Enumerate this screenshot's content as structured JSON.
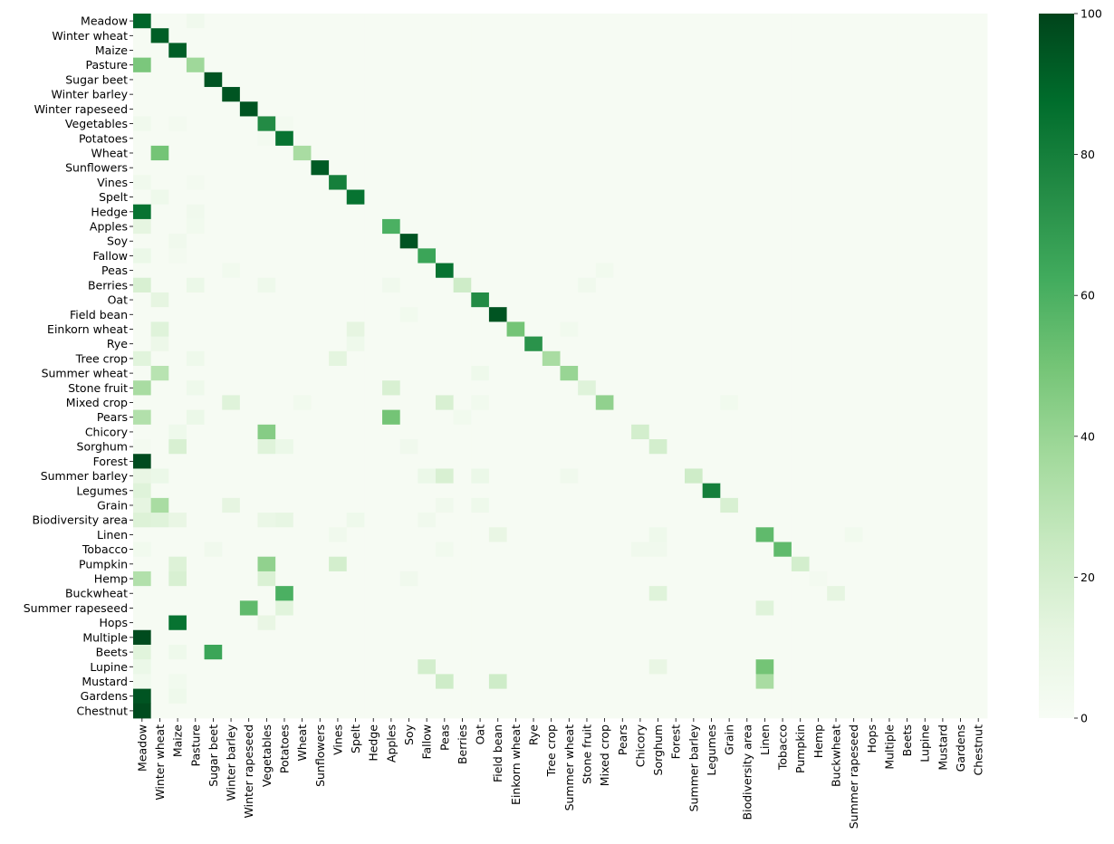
{
  "chart_data": {
    "type": "heatmap",
    "title": "",
    "xlabel": "",
    "ylabel": "",
    "categories": [
      "Meadow",
      "Winter wheat",
      "Maize",
      "Pasture",
      "Sugar beet",
      "Winter barley",
      "Winter rapeseed",
      "Vegetables",
      "Potatoes",
      "Wheat",
      "Sunflowers",
      "Vines",
      "Spelt",
      "Hedge",
      "Apples",
      "Soy",
      "Fallow",
      "Peas",
      "Berries",
      "Oat",
      "Field bean",
      "Einkorn wheat",
      "Rye",
      "Tree crop",
      "Summer wheat",
      "Stone fruit",
      "Mixed crop",
      "Pears",
      "Chicory",
      "Sorghum",
      "Forest",
      "Summer barley",
      "Legumes",
      "Grain",
      "Biodiversity area",
      "Linen",
      "Tobacco",
      "Pumpkin",
      "Hemp",
      "Buckwheat",
      "Summer rapeseed",
      "Hops",
      "Multiple",
      "Beets",
      "Lupine",
      "Mustard",
      "Gardens",
      "Chestnut"
    ],
    "colorbar": {
      "min": 0,
      "max": 100,
      "ticks": [
        0,
        20,
        40,
        60,
        80,
        100
      ]
    },
    "colormap": [
      "#f7fcf5",
      "#e5f5e0",
      "#c7e9c0",
      "#a1d99b",
      "#74c476",
      "#41ab5d",
      "#238b45",
      "#006d2c",
      "#00441b"
    ],
    "background_value": 1,
    "cells": [
      [
        0,
        0,
        90
      ],
      [
        0,
        3,
        5
      ],
      [
        1,
        1,
        92
      ],
      [
        2,
        2,
        92
      ],
      [
        3,
        0,
        48
      ],
      [
        3,
        3,
        38
      ],
      [
        4,
        4,
        95
      ],
      [
        5,
        5,
        95
      ],
      [
        6,
        6,
        95
      ],
      [
        7,
        0,
        5
      ],
      [
        7,
        2,
        3
      ],
      [
        7,
        7,
        75
      ],
      [
        7,
        8,
        3
      ],
      [
        8,
        7,
        3
      ],
      [
        8,
        8,
        85
      ],
      [
        9,
        1,
        50
      ],
      [
        9,
        9,
        35
      ],
      [
        10,
        10,
        93
      ],
      [
        11,
        0,
        5
      ],
      [
        11,
        3,
        3
      ],
      [
        11,
        11,
        80
      ],
      [
        12,
        1,
        6
      ],
      [
        12,
        12,
        85
      ],
      [
        13,
        0,
        85
      ],
      [
        13,
        3,
        5
      ],
      [
        14,
        0,
        12
      ],
      [
        14,
        3,
        4
      ],
      [
        14,
        14,
        60
      ],
      [
        15,
        2,
        5
      ],
      [
        15,
        15,
        95
      ],
      [
        16,
        0,
        8
      ],
      [
        16,
        2,
        3
      ],
      [
        16,
        16,
        65
      ],
      [
        17,
        5,
        4
      ],
      [
        17,
        17,
        85
      ],
      [
        17,
        26,
        4
      ],
      [
        18,
        0,
        18
      ],
      [
        18,
        3,
        8
      ],
      [
        18,
        7,
        6
      ],
      [
        18,
        14,
        5
      ],
      [
        18,
        18,
        22
      ],
      [
        18,
        25,
        5
      ],
      [
        19,
        1,
        12
      ],
      [
        19,
        19,
        75
      ],
      [
        20,
        15,
        4
      ],
      [
        20,
        20,
        95
      ],
      [
        21,
        1,
        15
      ],
      [
        21,
        12,
        12
      ],
      [
        21,
        21,
        50
      ],
      [
        21,
        24,
        4
      ],
      [
        22,
        1,
        7
      ],
      [
        22,
        12,
        6
      ],
      [
        22,
        22,
        72
      ],
      [
        23,
        0,
        14
      ],
      [
        23,
        3,
        6
      ],
      [
        23,
        11,
        13
      ],
      [
        23,
        23,
        35
      ],
      [
        24,
        1,
        30
      ],
      [
        24,
        19,
        6
      ],
      [
        24,
        24,
        40
      ],
      [
        25,
        0,
        35
      ],
      [
        25,
        3,
        6
      ],
      [
        25,
        14,
        18
      ],
      [
        25,
        25,
        15
      ],
      [
        26,
        5,
        15
      ],
      [
        26,
        9,
        4
      ],
      [
        26,
        17,
        18
      ],
      [
        26,
        19,
        4
      ],
      [
        26,
        26,
        42
      ],
      [
        26,
        33,
        4
      ],
      [
        27,
        0,
        32
      ],
      [
        27,
        3,
        8
      ],
      [
        27,
        14,
        50
      ],
      [
        27,
        18,
        4
      ],
      [
        28,
        2,
        6
      ],
      [
        28,
        7,
        45
      ],
      [
        28,
        28,
        20
      ],
      [
        29,
        0,
        3
      ],
      [
        29,
        2,
        18
      ],
      [
        29,
        7,
        15
      ],
      [
        29,
        8,
        8
      ],
      [
        29,
        15,
        5
      ],
      [
        29,
        29,
        20
      ],
      [
        30,
        0,
        98
      ],
      [
        31,
        0,
        10
      ],
      [
        31,
        1,
        8
      ],
      [
        31,
        16,
        8
      ],
      [
        31,
        17,
        18
      ],
      [
        31,
        19,
        8
      ],
      [
        31,
        24,
        5
      ],
      [
        31,
        31,
        22
      ],
      [
        32,
        0,
        15
      ],
      [
        32,
        32,
        80
      ],
      [
        33,
        0,
        12
      ],
      [
        33,
        1,
        35
      ],
      [
        33,
        5,
        12
      ],
      [
        33,
        17,
        5
      ],
      [
        33,
        19,
        6
      ],
      [
        33,
        33,
        18
      ],
      [
        34,
        0,
        16
      ],
      [
        34,
        1,
        15
      ],
      [
        34,
        2,
        10
      ],
      [
        34,
        7,
        9
      ],
      [
        34,
        8,
        11
      ],
      [
        34,
        12,
        6
      ],
      [
        34,
        16,
        5
      ],
      [
        35,
        11,
        5
      ],
      [
        35,
        20,
        10
      ],
      [
        35,
        29,
        6
      ],
      [
        35,
        35,
        55
      ],
      [
        35,
        40,
        4
      ],
      [
        36,
        0,
        4
      ],
      [
        36,
        4,
        5
      ],
      [
        36,
        17,
        4
      ],
      [
        36,
        28,
        5
      ],
      [
        36,
        29,
        5
      ],
      [
        36,
        36,
        55
      ],
      [
        37,
        2,
        16
      ],
      [
        37,
        7,
        42
      ],
      [
        37,
        11,
        20
      ],
      [
        37,
        37,
        20
      ],
      [
        38,
        0,
        32
      ],
      [
        38,
        2,
        18
      ],
      [
        38,
        7,
        17
      ],
      [
        38,
        15,
        5
      ],
      [
        38,
        38,
        3
      ],
      [
        39,
        8,
        60
      ],
      [
        39,
        29,
        15
      ],
      [
        39,
        39,
        12
      ],
      [
        40,
        6,
        55
      ],
      [
        40,
        8,
        14
      ],
      [
        40,
        35,
        15
      ],
      [
        41,
        2,
        85
      ],
      [
        41,
        7,
        10
      ],
      [
        42,
        0,
        98
      ],
      [
        43,
        0,
        14
      ],
      [
        43,
        2,
        6
      ],
      [
        43,
        4,
        65
      ],
      [
        44,
        0,
        8
      ],
      [
        44,
        16,
        20
      ],
      [
        44,
        29,
        10
      ],
      [
        44,
        35,
        50
      ],
      [
        45,
        0,
        4
      ],
      [
        45,
        2,
        4
      ],
      [
        45,
        17,
        22
      ],
      [
        45,
        20,
        22
      ],
      [
        45,
        35,
        35
      ],
      [
        46,
        0,
        95
      ],
      [
        46,
        2,
        6
      ],
      [
        47,
        0,
        98
      ]
    ]
  }
}
